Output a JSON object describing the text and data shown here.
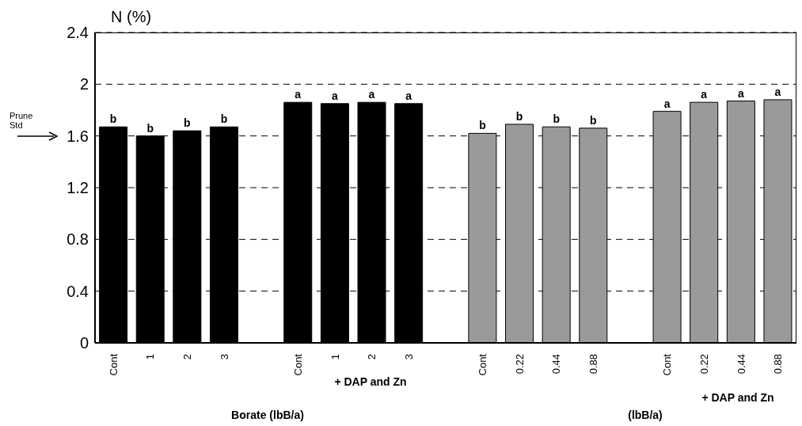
{
  "chart_data": {
    "type": "bar",
    "ylabel": "N (%)",
    "categories": [
      "Cont",
      "1",
      "2",
      "3",
      null,
      "Cont",
      "1",
      "2",
      "3",
      null,
      "Cont",
      "0.22",
      "0.44",
      "0.88",
      null,
      "Cont",
      "0.22",
      "0.44",
      "0.88"
    ],
    "values": [
      1.67,
      1.6,
      1.64,
      1.67,
      null,
      1.86,
      1.85,
      1.86,
      1.85,
      null,
      1.62,
      1.69,
      1.67,
      1.66,
      null,
      1.79,
      1.86,
      1.87,
      1.88
    ],
    "value_labels": [
      "b",
      "b",
      "b",
      "b",
      null,
      "a",
      "a",
      "a",
      "a",
      null,
      "b",
      "b",
      "b",
      "b",
      null,
      "a",
      "a",
      "a",
      "a"
    ],
    "colors": [
      "#000000",
      "#000000",
      "#000000",
      "#000000",
      null,
      "#000000",
      "#000000",
      "#000000",
      "#000000",
      null,
      "#9a9a9a",
      "#9a9a9a",
      "#9a9a9a",
      "#9a9a9a",
      null,
      "#9a9a9a",
      "#9a9a9a",
      "#9a9a9a",
      "#9a9a9a"
    ],
    "ylim": [
      0,
      2.4
    ],
    "yticks": [
      0,
      0.4,
      0.8,
      1.2,
      1.6,
      2,
      2.4
    ],
    "grid": "y",
    "annotations": [
      "Prune Std",
      "+ DAP and Zn",
      "+ DAP and Zn",
      "Borate (lbB/a)",
      "(lbB/a)"
    ]
  }
}
